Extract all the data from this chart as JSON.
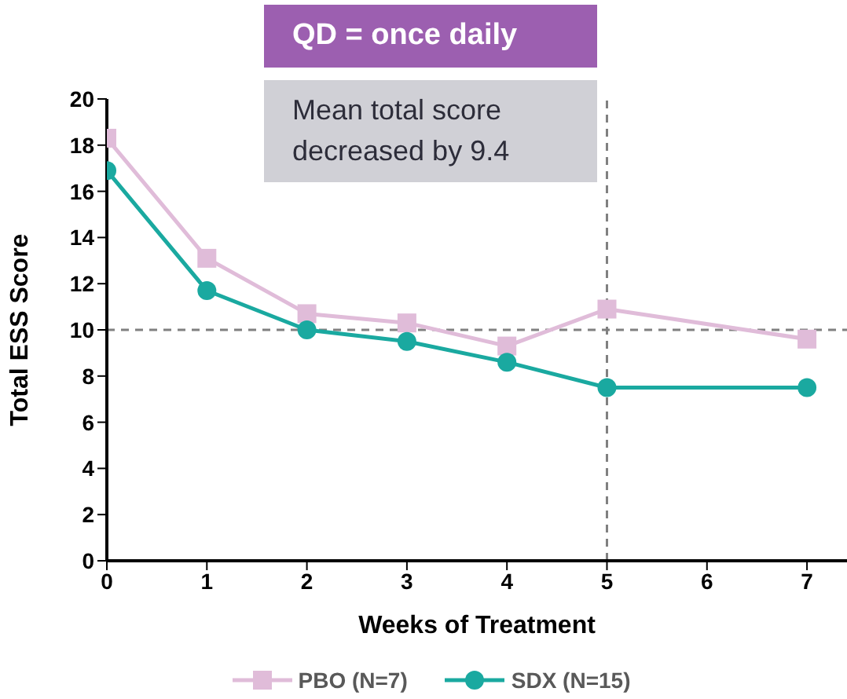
{
  "chart_data": {
    "type": "line",
    "xlabel": "Weeks of Treatment",
    "ylabel": "Total ESS Score",
    "annotations": [
      "QD = once daily",
      "Mean total score decreased by 9.4"
    ],
    "xlim": [
      0,
      7.4
    ],
    "xticks": [
      0,
      1,
      2,
      3,
      4,
      5,
      6,
      7
    ],
    "ylim": [
      0,
      20
    ],
    "yticks": [
      0,
      2,
      4,
      6,
      8,
      10,
      12,
      14,
      16,
      18,
      20
    ],
    "grid": false,
    "legend": "bottom",
    "line_style": "solid",
    "ref_lines": [
      {
        "axis": "x",
        "value": 5,
        "color": "#808080",
        "line_style": "dashed"
      },
      {
        "axis": "y",
        "value": 10,
        "color": "#808080",
        "line_style": "dashed"
      }
    ],
    "series": [
      {
        "name": "PBO (N=7)",
        "color": "#e0bcd9",
        "marker": "square",
        "x": [
          0,
          1,
          2,
          3,
          4,
          5,
          7
        ],
        "values": [
          18.3,
          13.1,
          10.7,
          10.3,
          9.3,
          10.9,
          9.6
        ]
      },
      {
        "name": "SDX (N=15)",
        "color": "#1aa9a0",
        "marker": "circle",
        "x": [
          0,
          1,
          2,
          3,
          4,
          5,
          7
        ],
        "values": [
          16.9,
          11.7,
          10.0,
          9.5,
          8.6,
          7.5,
          7.5
        ]
      }
    ]
  }
}
